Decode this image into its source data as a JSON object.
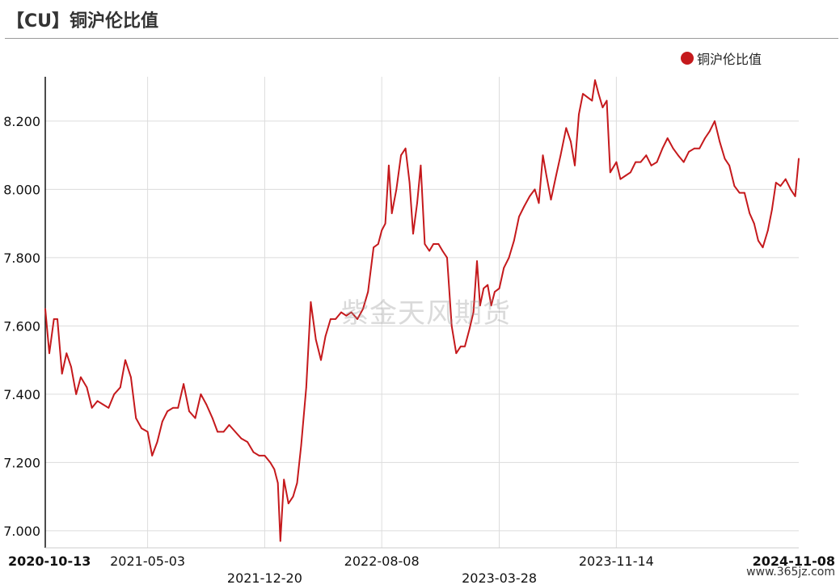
{
  "header": {
    "title": "【CU】铜沪伦比值"
  },
  "watermark": "紫金天风期货",
  "site": "www.365jz.com",
  "colors": {
    "series": "#c5191c",
    "grid": "#dcdcdc",
    "axis": "#111111"
  },
  "chart_data": {
    "type": "line",
    "title": "【CU】铜沪伦比值",
    "legend": {
      "position": "top-right"
    },
    "grid": true,
    "ylim": [
      7.0,
      8.3
    ],
    "yticks": [
      "7.000",
      "7.200",
      "7.400",
      "7.600",
      "7.800",
      "8.000",
      "8.200"
    ],
    "xlim": [
      "2020-10-13",
      "2024-11-08"
    ],
    "xticks": [
      {
        "label": "2020-10-13",
        "date": "2020-10-13",
        "row": 0,
        "bold": true
      },
      {
        "label": "2021-05-03",
        "date": "2021-05-03",
        "row": 0,
        "bold": false
      },
      {
        "label": "2021-12-20",
        "date": "2021-12-20",
        "row": 1,
        "bold": false
      },
      {
        "label": "2022-08-08",
        "date": "2022-08-08",
        "row": 0,
        "bold": false
      },
      {
        "label": "2023-03-28",
        "date": "2023-03-28",
        "row": 1,
        "bold": false
      },
      {
        "label": "2023-11-14",
        "date": "2023-11-14",
        "row": 0,
        "bold": false
      },
      {
        "label": "2024-11-08",
        "date": "2024-11-08",
        "row": 0,
        "bold": true
      }
    ],
    "series": [
      {
        "name": "铜沪伦比值",
        "points": [
          [
            "2020-10-13",
            7.65
          ],
          [
            "2020-10-21",
            7.52
          ],
          [
            "2020-10-30",
            7.62
          ],
          [
            "2020-11-06",
            7.62
          ],
          [
            "2020-11-15",
            7.46
          ],
          [
            "2020-11-24",
            7.52
          ],
          [
            "2020-12-03",
            7.48
          ],
          [
            "2020-12-13",
            7.4
          ],
          [
            "2020-12-22",
            7.45
          ],
          [
            "2021-01-03",
            7.42
          ],
          [
            "2021-01-13",
            7.36
          ],
          [
            "2021-01-24",
            7.38
          ],
          [
            "2021-02-04",
            7.37
          ],
          [
            "2021-02-15",
            7.36
          ],
          [
            "2021-02-26",
            7.4
          ],
          [
            "2021-03-10",
            7.42
          ],
          [
            "2021-03-20",
            7.5
          ],
          [
            "2021-03-31",
            7.45
          ],
          [
            "2021-04-10",
            7.33
          ],
          [
            "2021-04-21",
            7.3
          ],
          [
            "2021-05-03",
            7.29
          ],
          [
            "2021-05-12",
            7.22
          ],
          [
            "2021-05-22",
            7.26
          ],
          [
            "2021-06-01",
            7.32
          ],
          [
            "2021-06-11",
            7.35
          ],
          [
            "2021-06-22",
            7.36
          ],
          [
            "2021-07-02",
            7.36
          ],
          [
            "2021-07-13",
            7.43
          ],
          [
            "2021-07-24",
            7.35
          ],
          [
            "2021-08-05",
            7.33
          ],
          [
            "2021-08-16",
            7.4
          ],
          [
            "2021-08-27",
            7.37
          ],
          [
            "2021-09-08",
            7.33
          ],
          [
            "2021-09-18",
            7.29
          ],
          [
            "2021-09-30",
            7.29
          ],
          [
            "2021-10-11",
            7.31
          ],
          [
            "2021-10-23",
            7.29
          ],
          [
            "2021-11-04",
            7.27
          ],
          [
            "2021-11-16",
            7.26
          ],
          [
            "2021-11-28",
            7.23
          ],
          [
            "2021-12-09",
            7.22
          ],
          [
            "2021-12-20",
            7.22
          ],
          [
            "2021-12-31",
            7.2
          ],
          [
            "2022-01-08",
            7.18
          ],
          [
            "2022-01-15",
            7.14
          ],
          [
            "2022-01-20",
            6.97
          ],
          [
            "2022-01-27",
            7.15
          ],
          [
            "2022-02-05",
            7.08
          ],
          [
            "2022-02-14",
            7.1
          ],
          [
            "2022-02-22",
            7.14
          ],
          [
            "2022-03-02",
            7.25
          ],
          [
            "2022-03-12",
            7.42
          ],
          [
            "2022-03-21",
            7.67
          ],
          [
            "2022-03-31",
            7.56
          ],
          [
            "2022-04-10",
            7.5
          ],
          [
            "2022-04-19",
            7.57
          ],
          [
            "2022-04-29",
            7.62
          ],
          [
            "2022-05-09",
            7.62
          ],
          [
            "2022-05-20",
            7.64
          ],
          [
            "2022-05-30",
            7.63
          ],
          [
            "2022-06-09",
            7.64
          ],
          [
            "2022-06-21",
            7.62
          ],
          [
            "2022-07-02",
            7.65
          ],
          [
            "2022-07-12",
            7.7
          ],
          [
            "2022-07-23",
            7.83
          ],
          [
            "2022-08-01",
            7.84
          ],
          [
            "2022-08-08",
            7.88
          ],
          [
            "2022-08-15",
            7.9
          ],
          [
            "2022-08-22",
            8.07
          ],
          [
            "2022-08-28",
            7.93
          ],
          [
            "2022-09-06",
            8.0
          ],
          [
            "2022-09-15",
            8.1
          ],
          [
            "2022-09-24",
            8.12
          ],
          [
            "2022-10-02",
            8.02
          ],
          [
            "2022-10-09",
            7.87
          ],
          [
            "2022-10-17",
            7.96
          ],
          [
            "2022-10-24",
            8.07
          ],
          [
            "2022-11-01",
            7.84
          ],
          [
            "2022-11-10",
            7.82
          ],
          [
            "2022-11-18",
            7.84
          ],
          [
            "2022-11-28",
            7.84
          ],
          [
            "2022-12-06",
            7.82
          ],
          [
            "2022-12-15",
            7.8
          ],
          [
            "2022-12-24",
            7.6
          ],
          [
            "2023-01-02",
            7.52
          ],
          [
            "2023-01-11",
            7.54
          ],
          [
            "2023-01-19",
            7.54
          ],
          [
            "2023-01-28",
            7.59
          ],
          [
            "2023-02-05",
            7.64
          ],
          [
            "2023-02-12",
            7.79
          ],
          [
            "2023-02-18",
            7.66
          ],
          [
            "2023-02-25",
            7.71
          ],
          [
            "2023-03-05",
            7.72
          ],
          [
            "2023-03-12",
            7.66
          ],
          [
            "2023-03-19",
            7.7
          ],
          [
            "2023-03-28",
            7.71
          ],
          [
            "2023-04-06",
            7.77
          ],
          [
            "2023-04-16",
            7.8
          ],
          [
            "2023-04-26",
            7.85
          ],
          [
            "2023-05-06",
            7.92
          ],
          [
            "2023-05-16",
            7.95
          ],
          [
            "2023-05-27",
            7.98
          ],
          [
            "2023-06-06",
            8.0
          ],
          [
            "2023-06-14",
            7.96
          ],
          [
            "2023-06-22",
            8.1
          ],
          [
            "2023-06-29",
            8.04
          ],
          [
            "2023-07-08",
            7.97
          ],
          [
            "2023-07-18",
            8.04
          ],
          [
            "2023-07-27",
            8.1
          ],
          [
            "2023-08-07",
            8.18
          ],
          [
            "2023-08-16",
            8.14
          ],
          [
            "2023-08-24",
            8.07
          ],
          [
            "2023-09-01",
            8.22
          ],
          [
            "2023-09-09",
            8.28
          ],
          [
            "2023-09-18",
            8.27
          ],
          [
            "2023-09-27",
            8.26
          ],
          [
            "2023-10-03",
            8.32
          ],
          [
            "2023-10-10",
            8.28
          ],
          [
            "2023-10-18",
            8.24
          ],
          [
            "2023-10-26",
            8.26
          ],
          [
            "2023-11-02",
            8.05
          ],
          [
            "2023-11-10",
            8.07
          ],
          [
            "2023-11-14",
            8.08
          ],
          [
            "2023-11-22",
            8.03
          ],
          [
            "2023-12-02",
            8.04
          ],
          [
            "2023-12-12",
            8.05
          ],
          [
            "2023-12-22",
            8.08
          ],
          [
            "2024-01-01",
            8.08
          ],
          [
            "2024-01-12",
            8.1
          ],
          [
            "2024-01-22",
            8.07
          ],
          [
            "2024-02-02",
            8.08
          ],
          [
            "2024-02-13",
            8.12
          ],
          [
            "2024-02-23",
            8.15
          ],
          [
            "2024-03-05",
            8.12
          ],
          [
            "2024-03-15",
            8.1
          ],
          [
            "2024-03-26",
            8.08
          ],
          [
            "2024-04-05",
            8.11
          ],
          [
            "2024-04-16",
            8.12
          ],
          [
            "2024-04-26",
            8.12
          ],
          [
            "2024-05-07",
            8.15
          ],
          [
            "2024-05-16",
            8.17
          ],
          [
            "2024-05-26",
            8.2
          ],
          [
            "2024-06-05",
            8.14
          ],
          [
            "2024-06-15",
            8.09
          ],
          [
            "2024-06-24",
            8.07
          ],
          [
            "2024-07-04",
            8.01
          ],
          [
            "2024-07-14",
            7.99
          ],
          [
            "2024-07-24",
            7.99
          ],
          [
            "2024-08-03",
            7.93
          ],
          [
            "2024-08-12",
            7.9
          ],
          [
            "2024-08-20",
            7.85
          ],
          [
            "2024-08-29",
            7.83
          ],
          [
            "2024-09-08",
            7.88
          ],
          [
            "2024-09-16",
            7.94
          ],
          [
            "2024-09-24",
            8.02
          ],
          [
            "2024-10-03",
            8.01
          ],
          [
            "2024-10-13",
            8.03
          ],
          [
            "2024-10-23",
            8.0
          ],
          [
            "2024-11-01",
            7.98
          ],
          [
            "2024-11-08",
            8.09
          ]
        ]
      }
    ]
  }
}
